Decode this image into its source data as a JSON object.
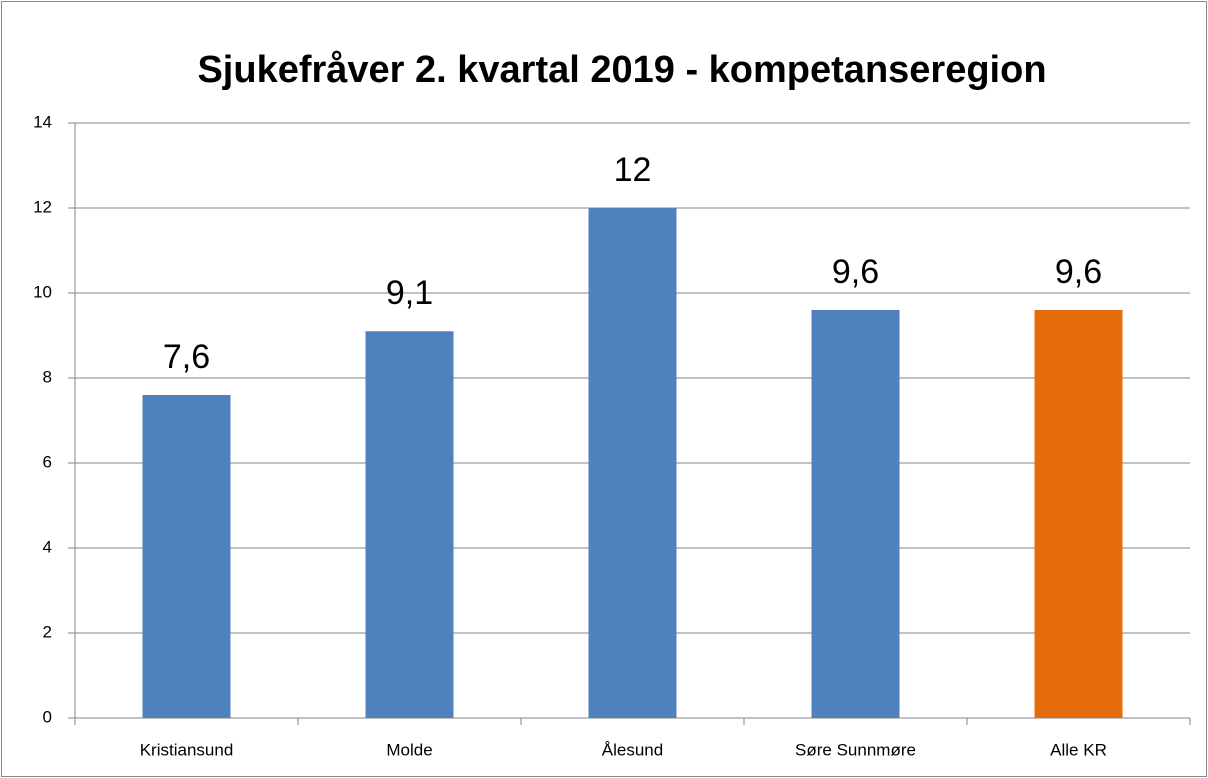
{
  "chart_data": {
    "type": "bar",
    "title": "Sjukefråver 2. kvartal 2019 - kompetanseregion",
    "categories": [
      "Kristiansund",
      "Molde",
      "Ålesund",
      "Søre Sunnmøre",
      "Alle KR"
    ],
    "values": [
      7.6,
      9.1,
      12,
      9.6,
      9.6
    ],
    "value_labels": [
      "7,6",
      "9,1",
      "12",
      "9,6",
      "9,6"
    ],
    "colors": [
      "#4f81bd",
      "#4f81bd",
      "#4f81bd",
      "#4f81bd",
      "#e46c0a"
    ],
    "ylim": [
      0,
      14
    ],
    "yticks": [
      0,
      2,
      4,
      6,
      8,
      10,
      12,
      14
    ],
    "grid": true
  }
}
